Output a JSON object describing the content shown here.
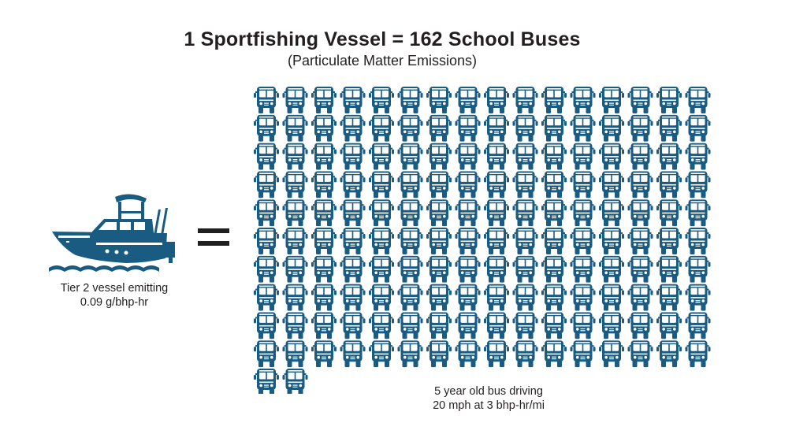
{
  "header": {
    "title": "1 Sportfishing Vessel = 162 School Buses",
    "subtitle": "(Particulate Matter Emissions)"
  },
  "vessel": {
    "icon": "sportfishing-boat-icon",
    "caption_line1": "Tier 2 vessel emitting",
    "caption_line2": "0.09 g/bhp-hr"
  },
  "operator": {
    "icon": "equals-sign-icon"
  },
  "buses": {
    "icon": "school-bus-front-icon",
    "count": 162,
    "caption_line1": "5 year old bus driving",
    "caption_line2": "20 mph at 3 bhp-hr/mi"
  },
  "colors": {
    "icon_blue": "#1a5b82",
    "text": "#231f20"
  }
}
